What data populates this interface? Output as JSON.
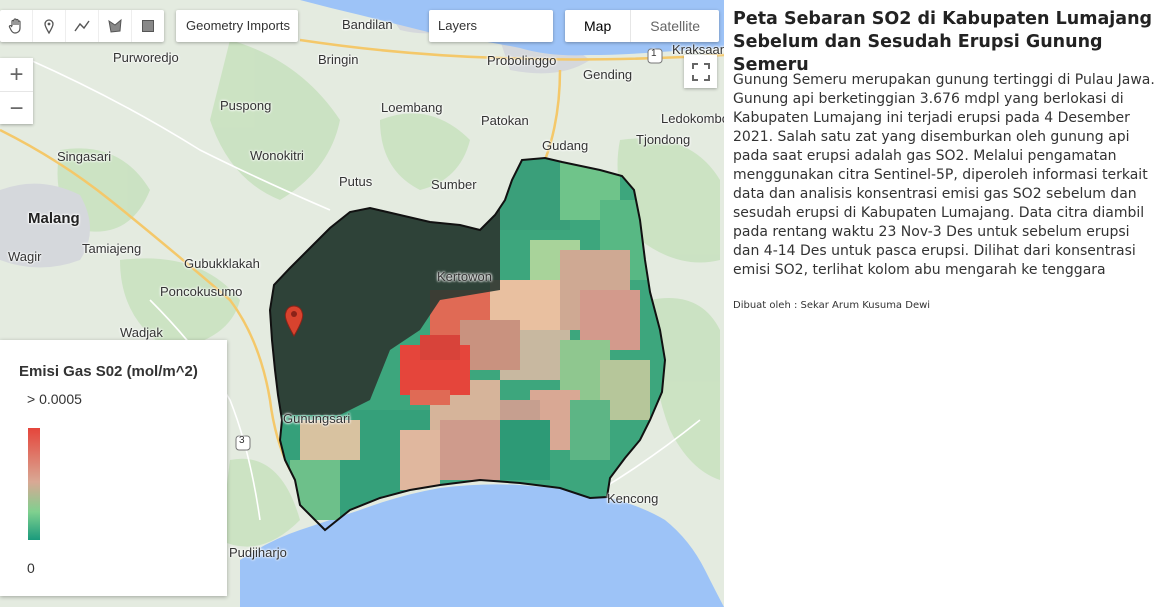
{
  "map": {
    "place_labels": [
      {
        "id": "bandilan",
        "text": "Bandilan"
      },
      {
        "id": "kraksaan",
        "text": "Kraksaan"
      },
      {
        "id": "purworedjo",
        "text": "Purworedjo"
      },
      {
        "id": "bringin",
        "text": "Bringin"
      },
      {
        "id": "probolinggo",
        "text": "Probolinggo"
      },
      {
        "id": "gending",
        "text": "Gending"
      },
      {
        "id": "ledokombo",
        "text": "Ledokombo"
      },
      {
        "id": "puspong",
        "text": "Puspong"
      },
      {
        "id": "loembang",
        "text": "Loembang"
      },
      {
        "id": "patokan",
        "text": "Patokan"
      },
      {
        "id": "tjondong",
        "text": "Tjondong"
      },
      {
        "id": "singasari",
        "text": "Singasari"
      },
      {
        "id": "wonokitri",
        "text": "Wonokitri"
      },
      {
        "id": "gudang",
        "text": "Gudang"
      },
      {
        "id": "putus",
        "text": "Putus"
      },
      {
        "id": "sumber",
        "text": "Sumber"
      },
      {
        "id": "malang",
        "text": "Malang"
      },
      {
        "id": "tamiajeng",
        "text": "Tamiajeng"
      },
      {
        "id": "wagir",
        "text": "Wagir"
      },
      {
        "id": "gubukklakah",
        "text": "Gubukklakah"
      },
      {
        "id": "kertowon",
        "text": "Kertowon"
      },
      {
        "id": "poncokusumo",
        "text": "Poncokusumo"
      },
      {
        "id": "wadjak",
        "text": "Wadjak"
      },
      {
        "id": "gunungsari",
        "text": "Gunungsari"
      },
      {
        "id": "kencong",
        "text": "Kencong"
      },
      {
        "id": "pudjiharjo",
        "text": "Pudjiharjo"
      }
    ],
    "road_shields": [
      "1",
      "3"
    ],
    "geometry_imports_label": "Geometry Imports",
    "layers_label": "Layers",
    "map_type": {
      "map_label": "Map",
      "satellite_label": "Satellite",
      "selected": "Map"
    },
    "zoom": {
      "in_label": "+",
      "out_label": "−"
    },
    "icons": {
      "pan": "hand-pan-icon",
      "point": "map-marker-icon",
      "line": "polyline-icon",
      "polygon": "polygon-icon",
      "rectangle": "rectangle-icon",
      "fullscreen": "fullscreen-icon",
      "marker": "volcano-marker-icon"
    },
    "colors": {
      "high": "#e5453b",
      "mid": "#d9a894",
      "low": "#7fd08f",
      "lowest": "#1a9a7c",
      "sea": "#9dc3f7",
      "marker": "#d8432e"
    }
  },
  "legend": {
    "title": "Emisi Gas S02 (mol/m^2)",
    "max_label": "> 0.0005",
    "min_label": "0",
    "palette": [
      "#e5453b",
      "#d9a894",
      "#7fd08f",
      "#1a9a7c"
    ]
  },
  "panel": {
    "title": "Peta Sebaran SO2 di Kabupaten Lumajang Sebelum dan Sesudah Erupsi Gunung Semeru",
    "description": "Gunung Semeru merupakan gunung tertinggi di Pulau Jawa. Gunung api berketinggian 3.676 mdpl yang berlokasi di Kabupaten Lumajang ini terjadi erupsi pada 4 Desember 2021. Salah satu zat yang disemburkan oleh gunung api pada saat erupsi adalah gas SO2. Melalui pengamatan menggunakan citra Sentinel-5P, diperoleh informasi terkait data dan analisis konsentrasi emisi gas SO2 sebelum dan sesudah erupsi di Kabupaten Lumajang. Data citra diambil pada rentang waktu 23 Nov-3 Des untuk sebelum erupsi dan 4-14 Des untuk pasca erupsi. Dilihat dari konsentrasi emisi SO2, terlihat kolom abu mengarah ke tenggara",
    "credit": "Dibuat oleh : Sekar Arum Kusuma Dewi"
  }
}
